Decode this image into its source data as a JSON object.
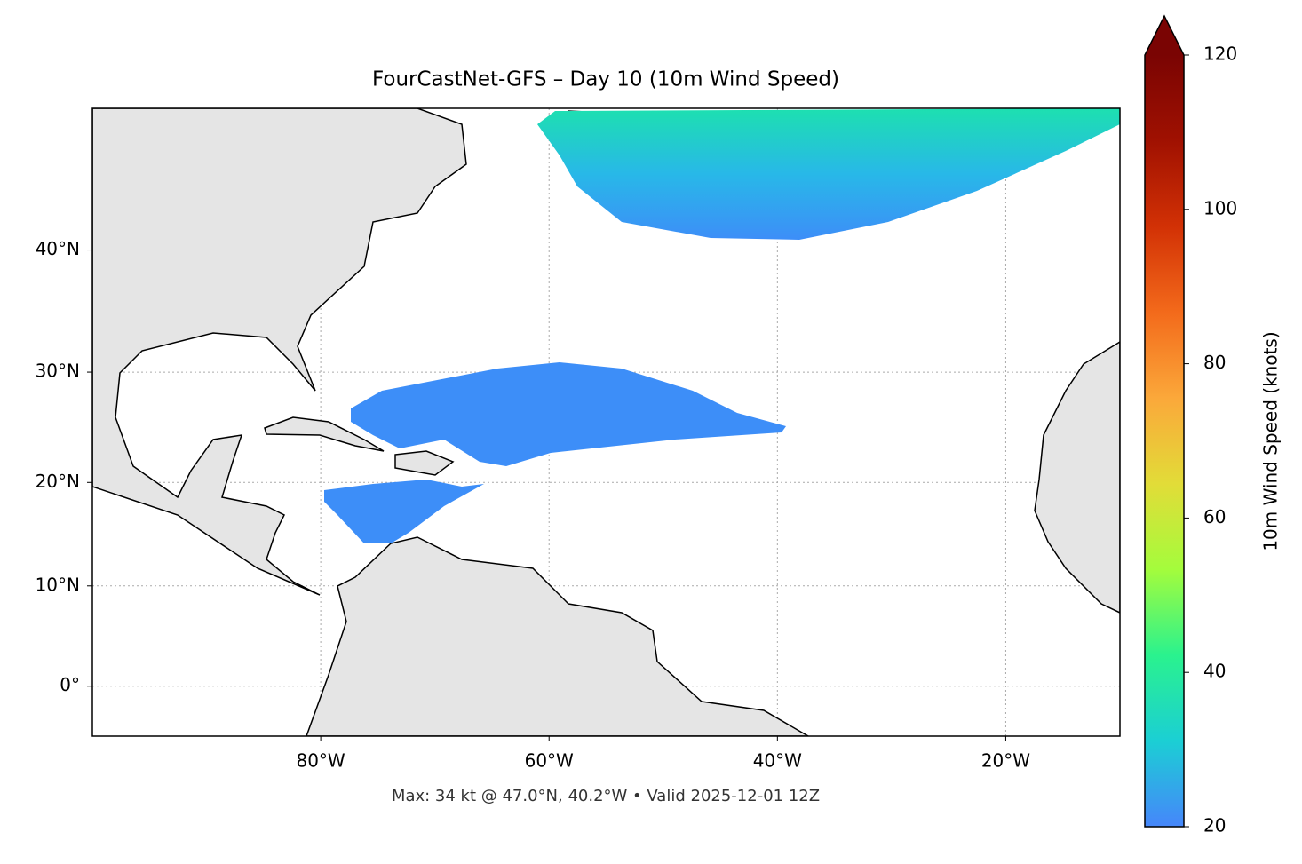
{
  "chart_data": {
    "type": "map",
    "title": "FourCastNet-GFS – Day 10 (10m Wind Speed)",
    "footer": "Max: 34 kt @ 47.0°N, 40.2°W • Valid 2025-12-01 12Z",
    "projection": "mercator",
    "xlim": [
      -100,
      -10
    ],
    "ylim": [
      -5,
      50
    ],
    "xticks": [
      {
        "value": -80,
        "label": "80°W"
      },
      {
        "value": -60,
        "label": "60°W"
      },
      {
        "value": -40,
        "label": "40°W"
      },
      {
        "value": -20,
        "label": "20°W"
      }
    ],
    "yticks": [
      {
        "value": 0,
        "label": "0°"
      },
      {
        "value": 10,
        "label": "10°N"
      },
      {
        "value": 20,
        "label": "20°N"
      },
      {
        "value": 30,
        "label": "30°N"
      },
      {
        "value": 40,
        "label": "40°N"
      }
    ],
    "grid": true,
    "colorbar": {
      "label": "10m Wind Speed (knots)",
      "lim": [
        20,
        120
      ],
      "ticks": [
        20,
        40,
        60,
        80,
        100,
        120
      ],
      "extend": "max",
      "colormap": [
        "#4686fb",
        "#1bcfd4",
        "#2af28e",
        "#a4fc3c",
        "#e2dc38",
        "#fba83a",
        "#f36a1b",
        "#d23105",
        "#a01101",
        "#7a0403"
      ]
    }
  }
}
